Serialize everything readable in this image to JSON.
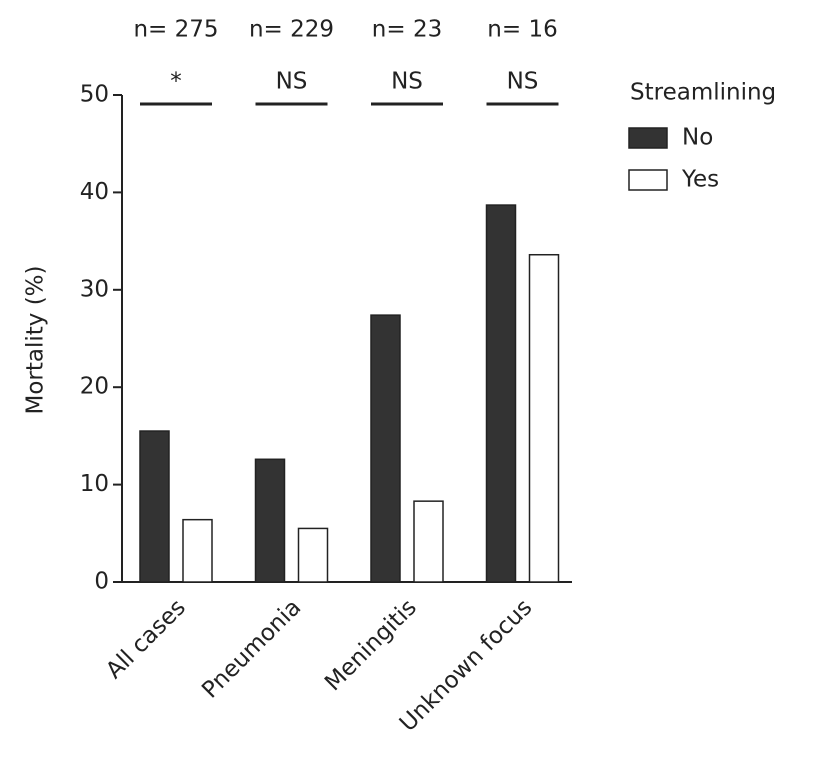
{
  "chart_data": {
    "type": "bar",
    "categories": [
      "All cases",
      "Pneumonia",
      "Meningitis",
      "Unknown focus"
    ],
    "series": [
      {
        "name": "No",
        "color": "#333333",
        "values": [
          15.5,
          12.6,
          27.4,
          38.7
        ]
      },
      {
        "name": "Yes",
        "color": "#ffffff",
        "values": [
          6.4,
          5.5,
          8.3,
          33.6
        ]
      }
    ],
    "group_n": [
      "n= 275",
      "n= 229",
      "n= 23",
      "n= 16"
    ],
    "significance": [
      "*",
      "NS",
      "NS",
      "NS"
    ],
    "y_label": "Mortality (%)",
    "legend_title": "Streamlining",
    "ylim": [
      0,
      50
    ],
    "yticks": [
      0,
      10,
      20,
      30,
      40,
      50
    ],
    "grid": false
  }
}
